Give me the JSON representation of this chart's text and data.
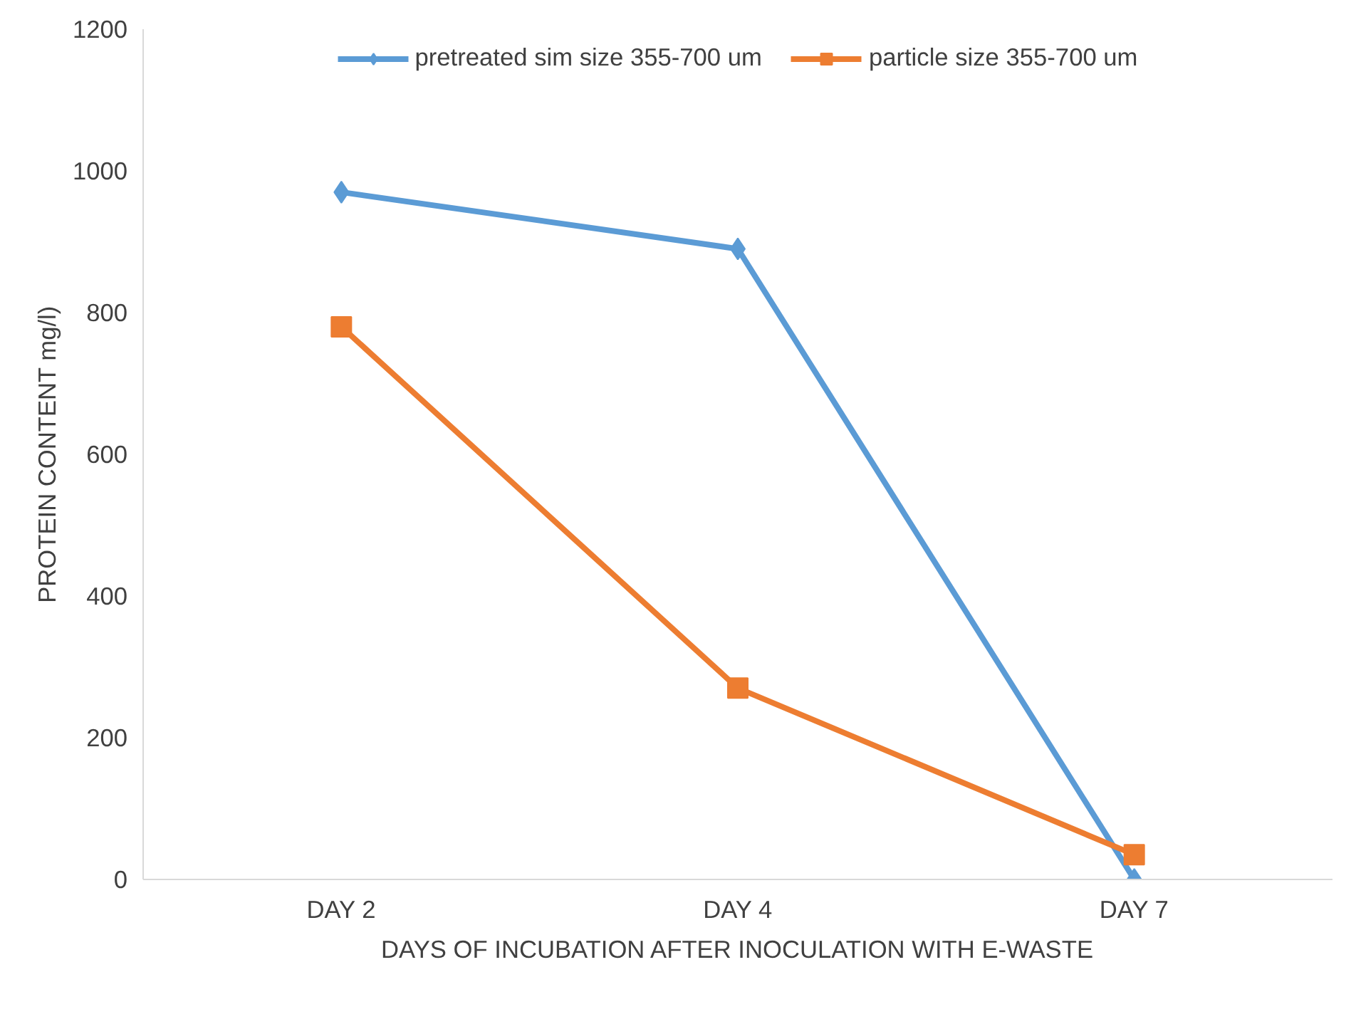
{
  "chart_data": {
    "type": "line",
    "xlabel": "DAYS OF INCUBATION AFTER INOCULATION WITH E-WASTE",
    "ylabel": "PROTEIN CONTENT mg/l)",
    "categories": [
      "DAY 2",
      "DAY 4",
      "DAY 7"
    ],
    "series": [
      {
        "name": "pretreated sim size 355-700 um",
        "color": "#5b9bd5",
        "values": [
          970,
          890,
          0
        ],
        "marker": "diamond"
      },
      {
        "name": "particle size 355-700 um",
        "color": "#ed7d31",
        "values": [
          780,
          270,
          35
        ],
        "marker": "square"
      }
    ],
    "ylim": [
      0,
      1200
    ],
    "yticks": [
      0,
      200,
      400,
      600,
      800,
      1000,
      1200
    ],
    "grid": false,
    "legend": "top",
    "line_style": "solid"
  }
}
